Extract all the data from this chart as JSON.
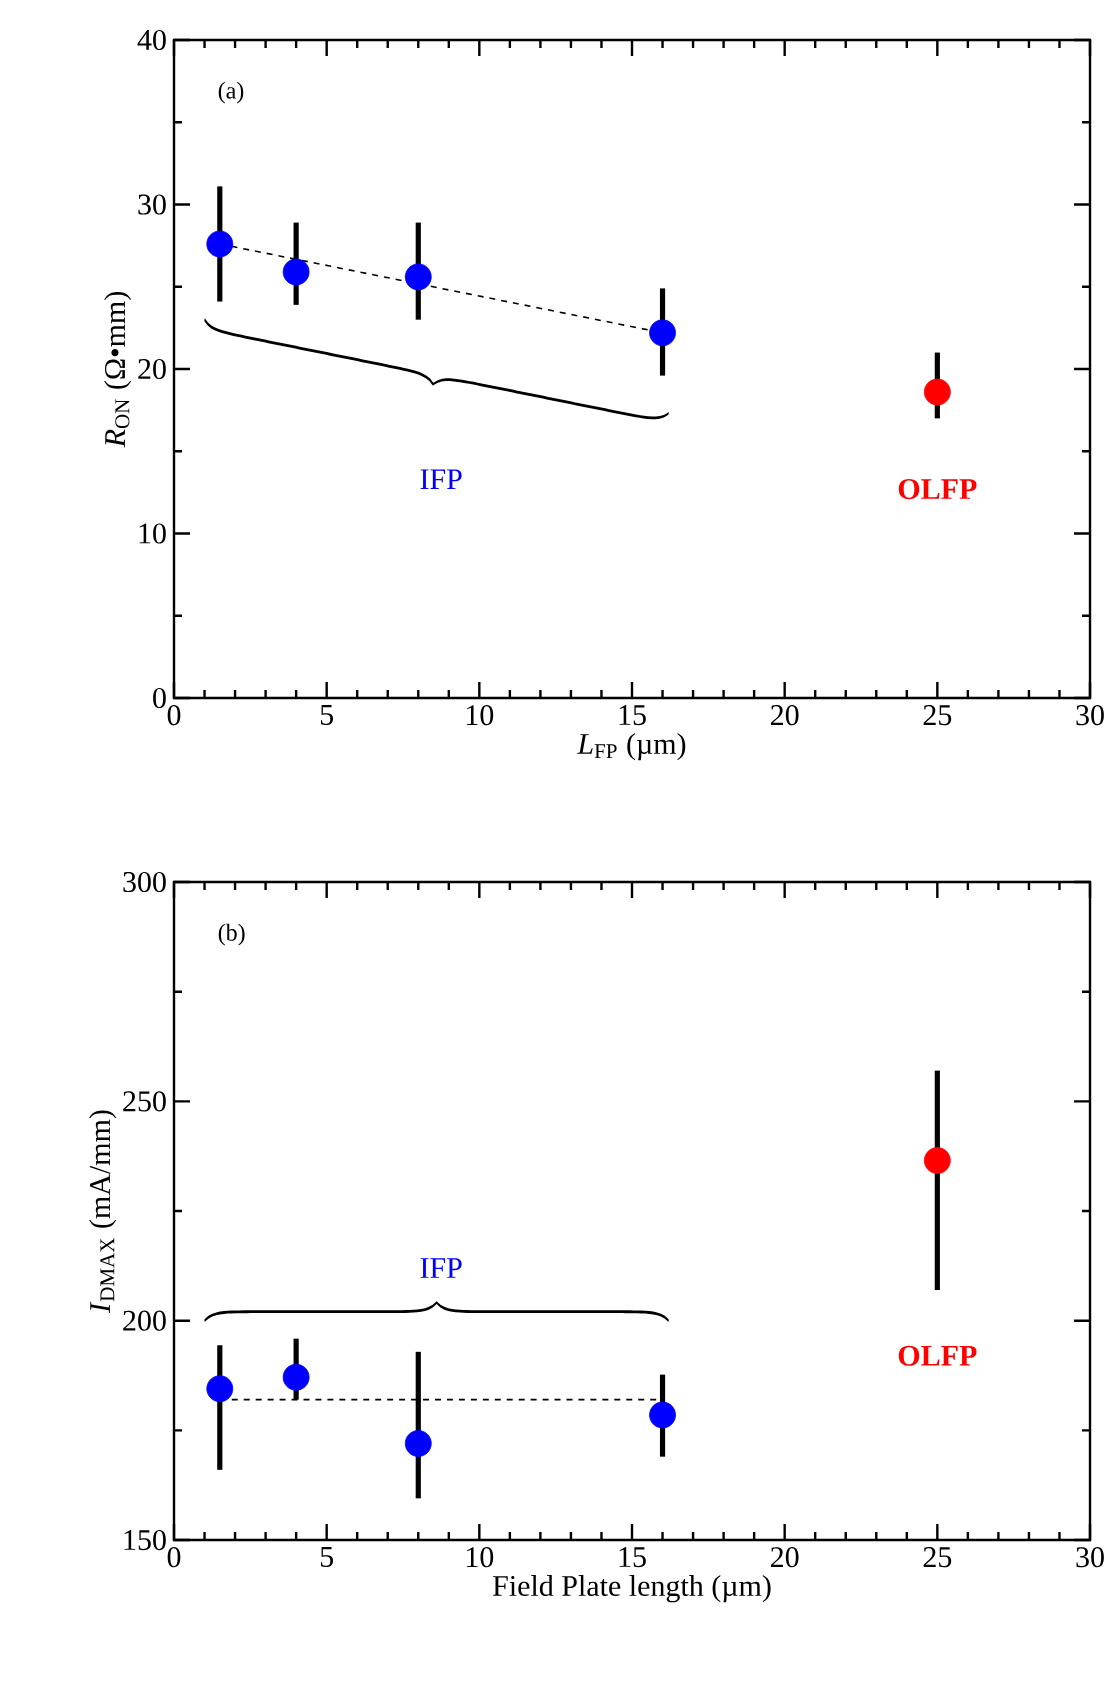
{
  "chart_data": [
    {
      "type": "scatter",
      "xlabel": "*L*$_{FP}$ (µm)",
      "ylabel": "*R*$_{ON}$ (Ω•mm)",
      "xlim": [
        0,
        30
      ],
      "ylim": [
        0,
        40
      ],
      "xticks": [
        0,
        5,
        10,
        15,
        20,
        25,
        30
      ],
      "yticks": [
        0,
        10,
        20,
        30,
        40
      ],
      "annotations": [
        "(a)"
      ],
      "series": [
        {
          "name": "IFP",
          "color": "#0000ff",
          "marker": "circle",
          "x": [
            1.5,
            4,
            8,
            16
          ],
          "values": [
            27.6,
            25.9,
            25.6,
            22.2
          ],
          "errors": [
            [
              24.1,
              31.1
            ],
            [
              23.9,
              28.9
            ],
            [
              23.0,
              28.9
            ],
            [
              19.6,
              24.9
            ]
          ]
        },
        {
          "name": "OLFP",
          "color": "#ff0000",
          "marker": "circle",
          "x": [
            25
          ],
          "values": [
            18.6
          ],
          "errors": [
            [
              17.0,
              21.0
            ]
          ]
        },
        {
          "type": "line",
          "color": "#000000",
          "line_style": "dashed",
          "marker": "none",
          "x": [
            1.5,
            16
          ],
          "values": [
            27.6,
            22.2
          ]
        }
      ]
    },
    {
      "type": "scatter",
      "xlabel": "Field Plate length (µm)",
      "ylabel": "*I*$_{DMAX}$ (mA/mm)",
      "xlim": [
        0,
        30
      ],
      "ylim": [
        150,
        300
      ],
      "xticks": [
        0,
        5,
        10,
        15,
        20,
        25,
        30
      ],
      "yticks": [
        150,
        200,
        250,
        300
      ],
      "annotations": [
        "(b)"
      ],
      "series": [
        {
          "name": "IFP",
          "color": "#0000ff",
          "marker": "circle",
          "x": [
            1.5,
            4,
            8,
            16
          ],
          "values": [
            184.5,
            187.1,
            172.0,
            178.5
          ],
          "errors": [
            [
              166,
              194.4
            ],
            [
              182,
              195.9
            ],
            [
              159.5,
              192.9
            ],
            [
              169,
              187.7
            ]
          ]
        },
        {
          "name": "OLFP",
          "color": "#ff0000",
          "marker": "circle",
          "x": [
            25
          ],
          "values": [
            236.5
          ],
          "errors": [
            [
              207,
              257
            ]
          ]
        },
        {
          "type": "line",
          "color": "#000000",
          "line_style": "dashed",
          "marker": "none",
          "x": [
            1.5,
            16
          ],
          "values": [
            182,
            182
          ]
        }
      ]
    }
  ]
}
